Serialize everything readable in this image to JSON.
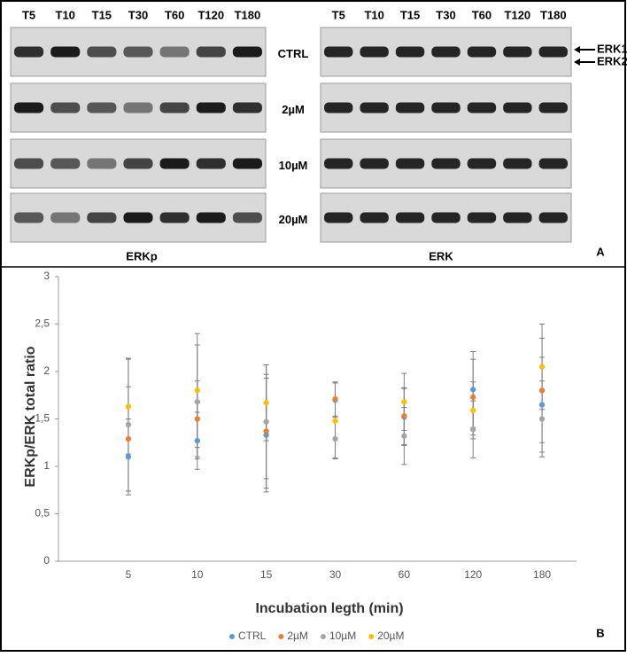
{
  "blot": {
    "timepoints": [
      "T5",
      "T10",
      "T15",
      "T30",
      "T60",
      "T120",
      "T180"
    ],
    "conditions": [
      "CTRL",
      "2µM",
      "10µM",
      "20µM"
    ],
    "left_label": "ERKp",
    "right_label": "ERK",
    "arrow_labels": [
      "ERK1",
      "ERK2"
    ],
    "panel_label": "A"
  },
  "chart_data": {
    "type": "errorbar",
    "panel_label": "B",
    "categories": [
      "5",
      "10",
      "15",
      "30",
      "60",
      "120",
      "180"
    ],
    "x_label": "Incubation legth (min)",
    "y_label": "ERKp/ERK total ratio",
    "ylim": [
      0,
      3
    ],
    "yticks": [
      0,
      {
        "value": 0.5,
        "label": "0,5"
      },
      1,
      {
        "value": 1.5,
        "label": "1,5"
      },
      2,
      {
        "value": 2.5,
        "label": "2,5"
      },
      3
    ],
    "error_color": "#7f7f7f",
    "series": [
      {
        "name": "CTRL",
        "color": "#5b9bd5",
        "values": [
          1.1,
          1.27,
          1.33,
          1.7,
          1.52,
          1.81,
          1.65
        ],
        "errors": [
          0.4,
          0.3,
          0.6,
          0.18,
          0.3,
          0.4,
          0.5
        ]
      },
      {
        "name": "2µM",
        "color": "#ed7d31",
        "values": [
          1.29,
          1.5,
          1.37,
          1.71,
          1.53,
          1.73,
          1.8
        ],
        "errors": [
          0.55,
          0.4,
          0.6,
          0.18,
          0.3,
          0.4,
          0.55
        ]
      },
      {
        "name": "10µM",
        "color": "#a5a5a5",
        "values": [
          1.44,
          1.68,
          1.47,
          1.29,
          1.32,
          1.39,
          1.5
        ],
        "errors": [
          0.7,
          0.6,
          0.6,
          0.2,
          0.3,
          0.3,
          0.4
        ]
      },
      {
        "name": "20µM",
        "color": "#ffc000",
        "values": [
          1.63,
          1.8,
          1.67,
          1.48,
          1.68,
          1.59,
          2.05
        ],
        "errors": [
          0.5,
          0.6,
          0.4,
          0.4,
          0.3,
          0.3,
          0.45
        ]
      }
    ]
  }
}
